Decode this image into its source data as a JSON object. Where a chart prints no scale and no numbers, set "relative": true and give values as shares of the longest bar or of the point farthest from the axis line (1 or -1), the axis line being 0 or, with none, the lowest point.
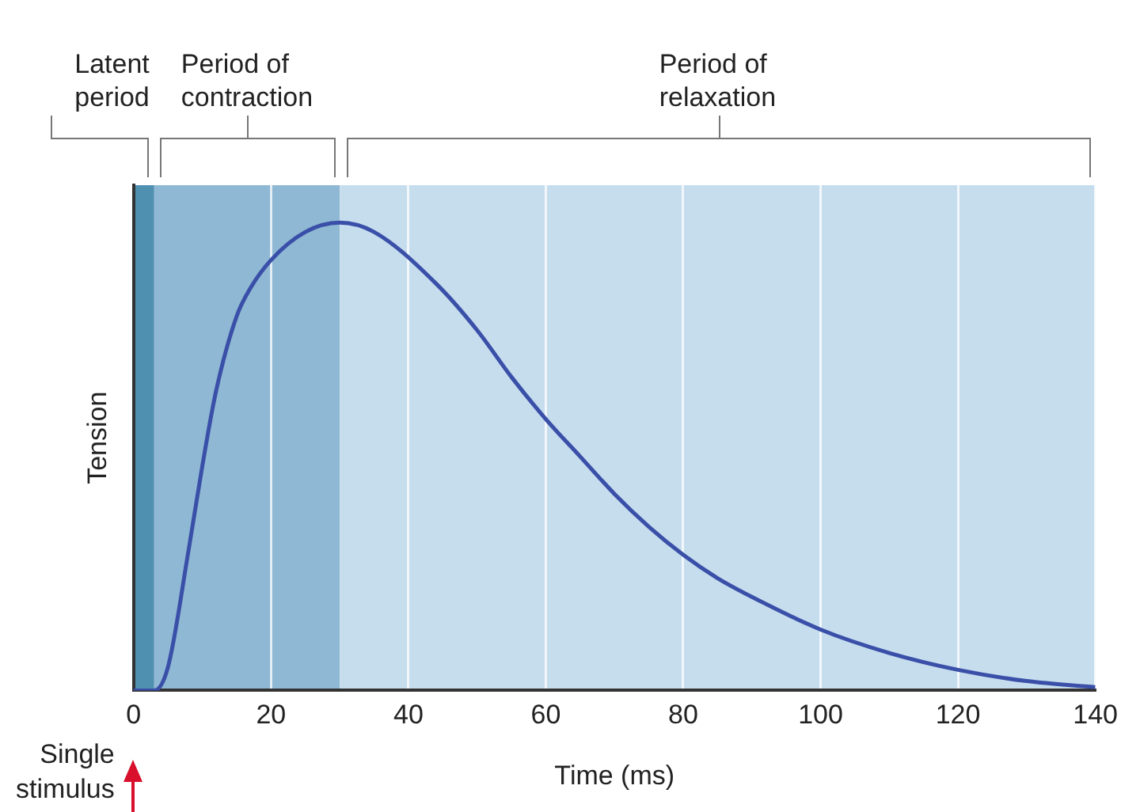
{
  "chart_data": {
    "type": "line",
    "relative": true,
    "xlabel": "Time (ms)",
    "ylabel": "Tension",
    "x": [
      0,
      3,
      5,
      8,
      10,
      12,
      15,
      17,
      20,
      25,
      30,
      35,
      44,
      50,
      55,
      60,
      65,
      70,
      75,
      80,
      85,
      90,
      100,
      110,
      120,
      130,
      140
    ],
    "series": [
      {
        "color": "#3a4fa8",
        "values": [
          0,
          0,
          0.05,
          0.3,
          0.48,
          0.64,
          0.8,
          0.86,
          0.92,
          0.98,
          1,
          0.98,
          0.87,
          0.77,
          0.67,
          0.58,
          0.5,
          0.42,
          0.35,
          0.29,
          0.24,
          0.2,
          0.13,
          0.08,
          0.044,
          0.02,
          0.007
        ]
      }
    ],
    "xlim": [
      0,
      140
    ],
    "xticks": [
      0,
      20,
      40,
      60,
      80,
      100,
      120,
      140
    ],
    "grid": "x",
    "marker": "none",
    "line_style": "solid",
    "legend": false,
    "bands": [
      {
        "axis": "x",
        "from": 0,
        "to": 3,
        "label": "Latent\nperiod",
        "color": "#4f8fb0"
      },
      {
        "axis": "x",
        "from": 3,
        "to": 30,
        "label": "Period of\ncontraction",
        "color": "#8fb8d4"
      },
      {
        "axis": "x",
        "from": 30,
        "to": 140,
        "label": "Period of\nrelaxation",
        "color": "#c6ddee"
      }
    ],
    "annotations": [
      "Single stimulus"
    ]
  }
}
